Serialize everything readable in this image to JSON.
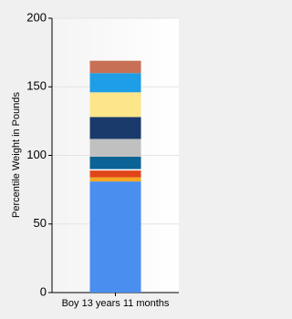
{
  "chart_data": {
    "type": "stacked_bar",
    "y_label": "Percentile Weight in Pounds",
    "categories": [
      "Boy 13 years 11 months"
    ],
    "series": [
      {
        "color": "#4a8ef0",
        "values": [
          81
        ]
      },
      {
        "color": "#f5a623",
        "values": [
          3
        ]
      },
      {
        "color": "#e0461a",
        "values": [
          5
        ]
      },
      {
        "color": "#ffffff",
        "values": [
          1
        ]
      },
      {
        "color": "#0b6396",
        "values": [
          9
        ]
      },
      {
        "color": "#c0c0c0",
        "values": [
          13
        ]
      },
      {
        "color": "#1a3a6b",
        "values": [
          16
        ]
      },
      {
        "color": "#fde58a",
        "values": [
          18
        ]
      },
      {
        "color": "#1e9ee6",
        "values": [
          14
        ]
      },
      {
        "color": "#c87055",
        "values": [
          9
        ]
      }
    ],
    "ylim": [
      0,
      200
    ],
    "yticks": [
      0,
      50,
      100,
      150,
      200
    ],
    "grid": true
  }
}
